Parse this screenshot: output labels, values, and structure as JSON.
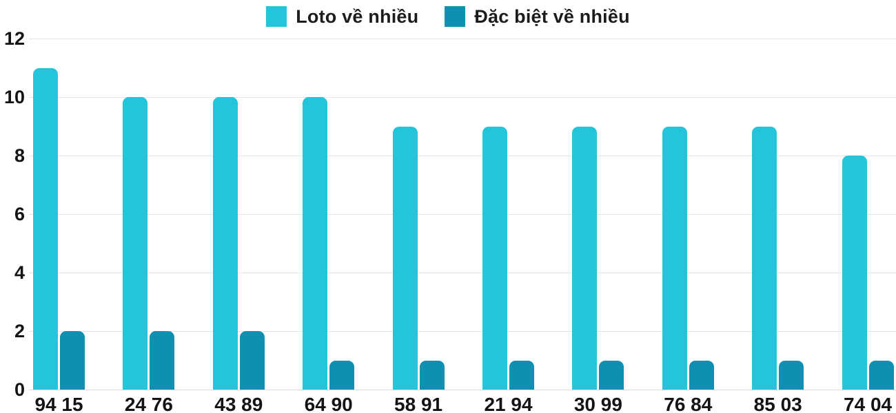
{
  "chart_data": {
    "type": "bar",
    "title": "",
    "xlabel": "",
    "ylabel": "",
    "categories": [
      "94 15",
      "24 76",
      "43 89",
      "64 90",
      "58 91",
      "21 94",
      "30 99",
      "76 84",
      "85 03",
      "74 04"
    ],
    "series": [
      {
        "name": "Loto về nhiều",
        "color": "#22c5da",
        "values": [
          11,
          10,
          10,
          10,
          9,
          9,
          9,
          9,
          9,
          8
        ]
      },
      {
        "name": "Đặc biệt về nhiều",
        "color": "#0f90b2",
        "values": [
          2,
          2,
          2,
          1,
          1,
          1,
          1,
          1,
          1,
          1
        ]
      }
    ],
    "ylim": [
      0,
      12
    ],
    "yticks": [
      0,
      2,
      4,
      6,
      8,
      10,
      12
    ],
    "grid": true,
    "legend_position": "top"
  },
  "colors": {
    "series1": "#22c5da",
    "series2": "#0f90b2",
    "gridline": "#e4e4e4",
    "text": "#141414",
    "background": "#ffffff"
  }
}
